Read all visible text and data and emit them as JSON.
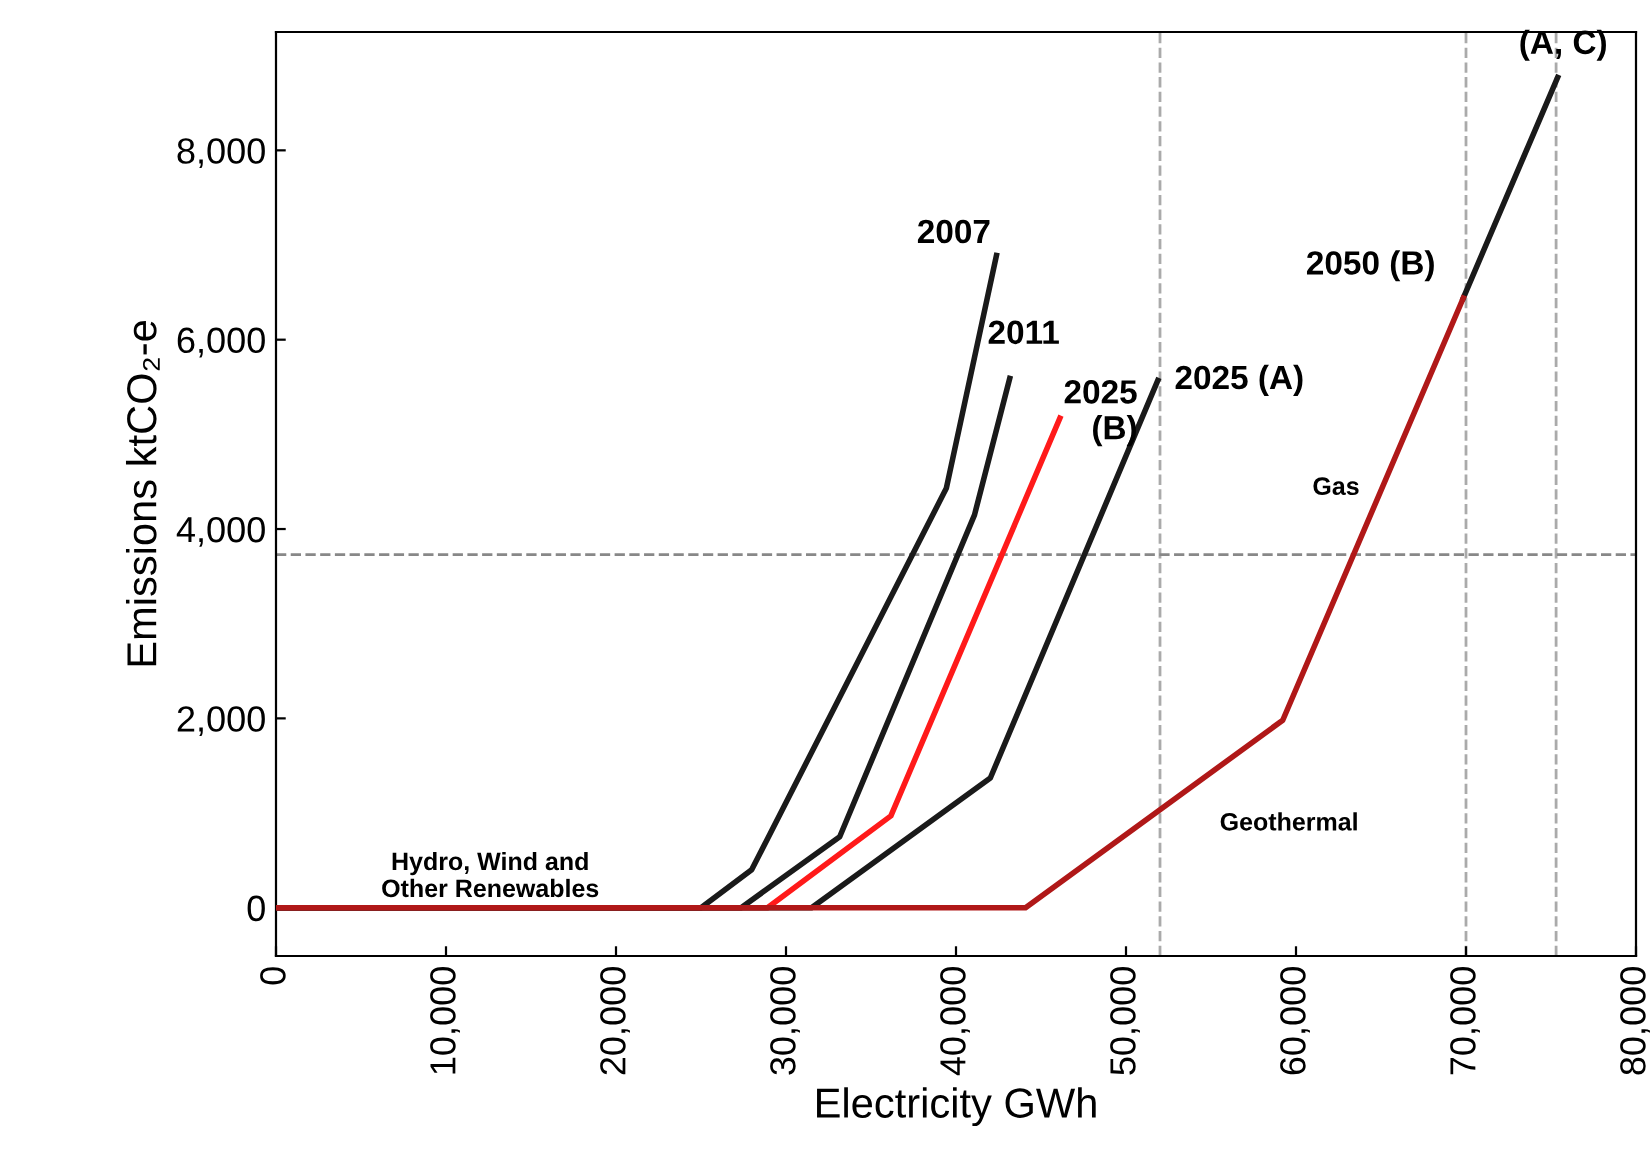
{
  "chart_data": {
    "type": "line",
    "xlabel": "Electricity GWh",
    "ylabel": "Emissions ktCO₂-e",
    "series": [
      {
        "color": "#1a1a1a",
        "x": [
          0,
          25000,
          27980,
          39430,
          42380
        ],
        "values": [
          0,
          0,
          400,
          4430,
          6890
        ]
      },
      {
        "color": "#1a1a1a",
        "x": [
          0,
          27360,
          33160,
          41090,
          43160
        ],
        "values": [
          0,
          0,
          750,
          4150,
          5590
        ]
      },
      {
        "color": "#ff1a1a",
        "x": [
          0,
          28910,
          36170,
          46110
        ],
        "values": [
          0,
          0,
          970,
          5170
        ]
      },
      {
        "color": "#1a1a1a",
        "x": [
          0,
          31500,
          42020,
          51870
        ],
        "values": [
          0,
          0,
          1370,
          5570
        ]
      },
      {
        "color": "#1a1a1a",
        "x": [
          69840,
          75390
        ],
        "values": [
          6440,
          8770
        ]
      },
      {
        "color": "#b01818",
        "x": [
          0,
          44090,
          59220,
          69840
        ],
        "values": [
          0,
          0,
          1980,
          6440
        ]
      }
    ],
    "xlim": [
      0,
      80000
    ],
    "xticks": [
      {
        "value": 0,
        "label": "0"
      },
      {
        "value": 10000,
        "label": "10,000"
      },
      {
        "value": 20000,
        "label": "20,000"
      },
      {
        "value": 30000,
        "label": "30,000"
      },
      {
        "value": 40000,
        "label": "40,000"
      },
      {
        "value": 50000,
        "label": "50,000"
      },
      {
        "value": 60000,
        "label": "60,000"
      },
      {
        "value": 70000,
        "label": "70,000"
      },
      {
        "value": 80000,
        "label": "80,000"
      }
    ],
    "ylim": [
      -510,
      9250
    ],
    "yticks": [
      {
        "value": 0,
        "label": "0"
      },
      {
        "value": 2000,
        "label": "2,000"
      },
      {
        "value": 4000,
        "label": "4,000"
      },
      {
        "value": 6000,
        "label": "6,000"
      },
      {
        "value": 8000,
        "label": "8,000"
      }
    ],
    "ref_lines": [
      {
        "axis": "x",
        "value": 52000,
        "color": "#aaaaaa",
        "line_style": "dashed"
      },
      {
        "axis": "x",
        "value": 70000,
        "color": "#aaaaaa",
        "line_style": "dashed"
      },
      {
        "axis": "x",
        "value": 75300,
        "color": "#aaaaaa",
        "line_style": "dashed"
      },
      {
        "axis": "y",
        "value": 3730,
        "color": "#888888",
        "line_style": "dashed"
      }
    ],
    "grid": false,
    "marker": "none",
    "line_style": "solid",
    "annotations": [
      {
        "text": "2007",
        "x": 42380,
        "y": 6890
      },
      {
        "text": "2011",
        "x": 43160,
        "y": 5590
      },
      {
        "text": "2025\n(B)",
        "x": 46110,
        "y": 5170
      },
      {
        "text": "2025 (A)",
        "x": 51870,
        "y": 5570
      },
      {
        "text": "2050 (B)",
        "x": 69840,
        "y": 6440
      },
      {
        "text": "(A, C)",
        "x": 75390,
        "y": 8770
      },
      {
        "text": "Gas",
        "x": 65050,
        "y": 4430
      },
      {
        "text": "Geothermal",
        "x": 56000,
        "y": 1560
      },
      {
        "text": "Hydro, Wind and\nOther Renewables",
        "x": 12600,
        "y": 0
      }
    ]
  }
}
